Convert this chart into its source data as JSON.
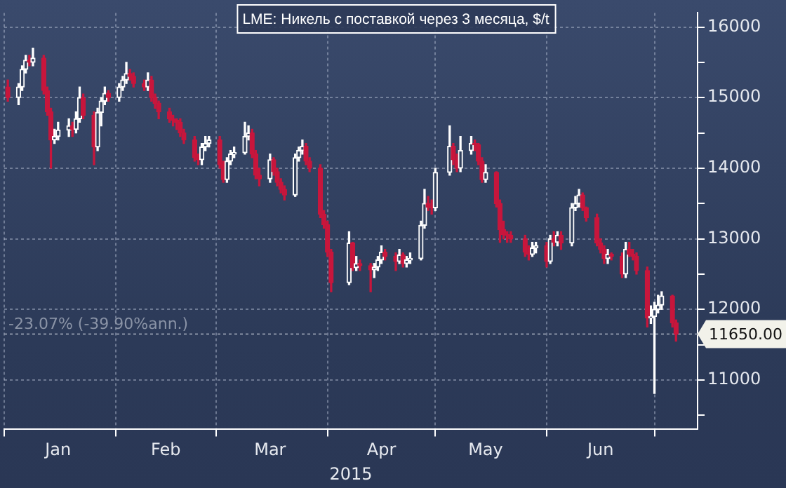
{
  "chart_data": {
    "type": "candlestick",
    "title": "LME: Никель с поставкой через 3 месяца, $/t",
    "xlabel": "2015",
    "x": [
      "2015-01-02",
      "2015-01-05",
      "2015-01-06",
      "2015-01-07",
      "2015-01-08",
      "2015-01-09",
      "2015-01-12",
      "2015-01-13",
      "2015-01-14",
      "2015-01-15",
      "2015-01-16",
      "2015-01-19",
      "2015-01-20",
      "2015-01-21",
      "2015-01-22",
      "2015-01-23",
      "2015-01-26",
      "2015-01-27",
      "2015-01-28",
      "2015-01-29",
      "2015-01-30",
      "2015-02-02",
      "2015-02-03",
      "2015-02-04",
      "2015-02-05",
      "2015-02-06",
      "2015-02-09",
      "2015-02-10",
      "2015-02-11",
      "2015-02-12",
      "2015-02-13",
      "2015-02-16",
      "2015-02-17",
      "2015-02-18",
      "2015-02-19",
      "2015-02-20",
      "2015-02-23",
      "2015-02-24",
      "2015-02-25",
      "2015-02-26",
      "2015-02-27",
      "2015-03-02",
      "2015-03-03",
      "2015-03-04",
      "2015-03-05",
      "2015-03-06",
      "2015-03-09",
      "2015-03-10",
      "2015-03-11",
      "2015-03-12",
      "2015-03-13",
      "2015-03-16",
      "2015-03-17",
      "2015-03-18",
      "2015-03-19",
      "2015-03-20",
      "2015-03-23",
      "2015-03-24",
      "2015-03-25",
      "2015-03-26",
      "2015-03-27",
      "2015-03-30",
      "2015-03-31",
      "2015-04-01",
      "2015-04-02",
      "2015-04-07",
      "2015-04-08",
      "2015-04-09",
      "2015-04-10",
      "2015-04-13",
      "2015-04-14",
      "2015-04-15",
      "2015-04-16",
      "2015-04-17",
      "2015-04-20",
      "2015-04-21",
      "2015-04-22",
      "2015-04-23",
      "2015-04-24",
      "2015-04-27",
      "2015-04-28",
      "2015-04-29",
      "2015-04-30",
      "2015-05-01",
      "2015-05-05",
      "2015-05-06",
      "2015-05-07",
      "2015-05-08",
      "2015-05-11",
      "2015-05-12",
      "2015-05-13",
      "2015-05-14",
      "2015-05-15",
      "2015-05-18",
      "2015-05-19",
      "2015-05-20",
      "2015-05-21",
      "2015-05-22",
      "2015-05-26",
      "2015-05-27",
      "2015-05-28",
      "2015-05-29",
      "2015-06-01",
      "2015-06-02",
      "2015-06-03",
      "2015-06-04",
      "2015-06-05",
      "2015-06-08",
      "2015-06-09",
      "2015-06-10",
      "2015-06-11",
      "2015-06-12",
      "2015-06-15",
      "2015-06-16",
      "2015-06-17",
      "2015-06-18",
      "2015-06-19",
      "2015-06-22",
      "2015-06-23",
      "2015-06-24",
      "2015-06-25",
      "2015-06-26",
      "2015-06-29",
      "2015-06-30",
      "2015-07-01",
      "2015-07-02",
      "2015-07-03",
      "2015-07-06",
      "2015-07-07"
    ],
    "ohlc": [
      [
        15150,
        15250,
        14950,
        15000
      ],
      [
        15000,
        15200,
        14900,
        15150
      ],
      [
        15150,
        15450,
        15100,
        15400
      ],
      [
        15400,
        15600,
        15350,
        15530
      ],
      [
        15530,
        15600,
        15450,
        15500
      ],
      [
        15500,
        15700,
        15450,
        15560
      ],
      [
        15560,
        15600,
        15050,
        15100
      ],
      [
        15100,
        15150,
        14750,
        14800
      ],
      [
        14800,
        14850,
        14000,
        14400
      ],
      [
        14400,
        14550,
        14350,
        14450
      ],
      [
        14450,
        14650,
        14400,
        14540
      ],
      [
        14540,
        14700,
        14450,
        14600
      ],
      [
        14600,
        14650,
        14450,
        14550
      ],
      [
        14550,
        14800,
        14500,
        14700
      ],
      [
        14700,
        15150,
        14650,
        15000
      ],
      [
        15000,
        15050,
        14700,
        14750
      ],
      [
        14750,
        14800,
        14050,
        14300
      ],
      [
        14300,
        14850,
        14250,
        14790
      ],
      [
        14790,
        15000,
        14600,
        14950
      ],
      [
        14950,
        15150,
        14900,
        15060
      ],
      [
        15060,
        15100,
        14950,
        15000
      ],
      [
        15000,
        15200,
        14950,
        15150
      ],
      [
        15150,
        15300,
        15100,
        15250
      ],
      [
        15250,
        15500,
        15200,
        15340
      ],
      [
        15340,
        15400,
        15250,
        15300
      ],
      [
        15300,
        15350,
        15150,
        15200
      ],
      [
        15200,
        15250,
        15100,
        15150
      ],
      [
        15150,
        15350,
        15100,
        15250
      ],
      [
        15250,
        15300,
        14950,
        15000
      ],
      [
        15000,
        15050,
        14850,
        14920
      ],
      [
        14920,
        14950,
        14700,
        14800
      ],
      [
        14800,
        14850,
        14650,
        14700
      ],
      [
        14700,
        14750,
        14600,
        14680
      ],
      [
        14680,
        14700,
        14550,
        14650
      ],
      [
        14650,
        14700,
        14450,
        14500
      ],
      [
        14500,
        14550,
        14350,
        14400
      ],
      [
        14400,
        14450,
        14100,
        14150
      ],
      [
        14150,
        14200,
        14050,
        14120
      ],
      [
        14120,
        14350,
        14050,
        14300
      ],
      [
        14300,
        14450,
        14250,
        14350
      ],
      [
        14350,
        14450,
        14300,
        14400
      ],
      [
        14400,
        14450,
        14000,
        14050
      ],
      [
        14050,
        14100,
        13800,
        13840
      ],
      [
        13840,
        14150,
        13800,
        14100
      ],
      [
        14100,
        14250,
        14050,
        14200
      ],
      [
        14200,
        14300,
        14150,
        14220
      ],
      [
        14220,
        14650,
        14200,
        14450
      ],
      [
        14450,
        14600,
        14400,
        14500
      ],
      [
        14500,
        14550,
        14150,
        14200
      ],
      [
        14200,
        14250,
        13850,
        13900
      ],
      [
        13900,
        14000,
        13750,
        13850
      ],
      [
        13850,
        14200,
        13800,
        14120
      ],
      [
        14120,
        14150,
        13900,
        13950
      ],
      [
        13950,
        14000,
        13750,
        13800
      ],
      [
        13800,
        13850,
        13650,
        13700
      ],
      [
        13700,
        13750,
        13550,
        13620
      ],
      [
        13620,
        14200,
        13600,
        14150
      ],
      [
        14150,
        14300,
        14100,
        14250
      ],
      [
        14250,
        14400,
        14200,
        14310
      ],
      [
        14310,
        14350,
        14050,
        14100
      ],
      [
        14100,
        14150,
        13950,
        14000
      ],
      [
        14000,
        14050,
        13300,
        13350
      ],
      [
        13350,
        13400,
        13150,
        13200
      ],
      [
        13200,
        13250,
        12750,
        12810
      ],
      [
        12810,
        12850,
        12250,
        12380
      ],
      [
        12380,
        13100,
        12350,
        12940
      ],
      [
        12940,
        12950,
        12550,
        12590
      ],
      [
        12590,
        12750,
        12550,
        12650
      ],
      [
        12650,
        12700,
        12550,
        12620
      ],
      [
        12620,
        12650,
        12250,
        12560
      ],
      [
        12560,
        12650,
        12450,
        12600
      ],
      [
        12600,
        12750,
        12550,
        12700
      ],
      [
        12700,
        12900,
        12650,
        12810
      ],
      [
        12810,
        12850,
        12700,
        12750
      ],
      [
        12750,
        12800,
        12550,
        12680
      ],
      [
        12680,
        12850,
        12650,
        12770
      ],
      [
        12770,
        12800,
        12600,
        12650
      ],
      [
        12650,
        12750,
        12600,
        12700
      ],
      [
        12700,
        12800,
        12650,
        12720
      ],
      [
        12720,
        13250,
        12700,
        13190
      ],
      [
        13190,
        13700,
        13150,
        13500
      ],
      [
        13500,
        13600,
        13400,
        13450
      ],
      [
        13450,
        13550,
        13350,
        13440
      ],
      [
        13440,
        14000,
        13400,
        13940
      ],
      [
        13940,
        14600,
        13900,
        14310
      ],
      [
        14310,
        14350,
        14050,
        14120
      ],
      [
        14120,
        14200,
        13950,
        14000
      ],
      [
        14000,
        14450,
        13950,
        14250
      ],
      [
        14250,
        14450,
        14200,
        14350
      ],
      [
        14350,
        14400,
        14250,
        14330
      ],
      [
        14330,
        14350,
        14050,
        14100
      ],
      [
        14100,
        14150,
        13800,
        13840
      ],
      [
        13840,
        14050,
        13800,
        13940
      ],
      [
        13940,
        13950,
        13450,
        13500
      ],
      [
        13500,
        13550,
        12950,
        13130
      ],
      [
        13130,
        13250,
        13000,
        13060
      ],
      [
        13060,
        13100,
        12950,
        13050
      ],
      [
        13050,
        13100,
        12950,
        13000
      ],
      [
        13000,
        13050,
        12750,
        12810
      ],
      [
        12810,
        12900,
        12700,
        12780
      ],
      [
        12780,
        12950,
        12750,
        12870
      ],
      [
        12870,
        12950,
        12800,
        12900
      ],
      [
        12900,
        12950,
        12600,
        12680
      ],
      [
        12680,
        13050,
        12650,
        13000
      ],
      [
        13000,
        13100,
        12900,
        12950
      ],
      [
        12950,
        13100,
        12900,
        13050
      ],
      [
        13050,
        13100,
        12850,
        12940
      ],
      [
        12940,
        13500,
        12900,
        13440
      ],
      [
        13440,
        13600,
        13400,
        13500
      ],
      [
        13500,
        13700,
        13450,
        13620
      ],
      [
        13620,
        13650,
        13400,
        13440
      ],
      [
        13440,
        13450,
        13250,
        13300
      ],
      [
        13300,
        13350,
        12900,
        12940
      ],
      [
        12940,
        13000,
        12800,
        12850
      ],
      [
        12850,
        12900,
        12650,
        12720
      ],
      [
        12720,
        12850,
        12650,
        12780
      ],
      [
        12780,
        12800,
        12700,
        12750
      ],
      [
        12750,
        12800,
        12450,
        12500
      ],
      [
        12500,
        12950,
        12450,
        12850
      ],
      [
        12850,
        12950,
        12750,
        12780
      ],
      [
        12780,
        12850,
        12700,
        12750
      ],
      [
        12750,
        12800,
        12500,
        12550
      ],
      [
        12550,
        12600,
        11750,
        11880
      ],
      [
        11880,
        12050,
        11800,
        11900
      ],
      [
        11900,
        12100,
        10810,
        12000
      ],
      [
        12000,
        12200,
        11950,
        12060
      ],
      [
        12060,
        12250,
        12000,
        12190
      ],
      [
        12190,
        12200,
        11750,
        11810
      ],
      [
        11810,
        11850,
        11550,
        11650
      ]
    ],
    "xlim": [
      "2015-01-01",
      "2015-07-13"
    ],
    "xticks": [
      {
        "value": "2015-01-01",
        "label": null
      },
      {
        "value": "2015-01-16",
        "label": "Jan"
      },
      {
        "value": "2015-02-01",
        "label": null
      },
      {
        "value": "2015-02-15",
        "label": "Feb"
      },
      {
        "value": "2015-03-01",
        "label": null
      },
      {
        "value": "2015-03-16",
        "label": "Mar"
      },
      {
        "value": "2015-04-01",
        "label": null
      },
      {
        "value": "2015-04-16",
        "label": "Apr"
      },
      {
        "value": "2015-05-01",
        "label": null
      },
      {
        "value": "2015-05-15",
        "label": "May"
      },
      {
        "value": "2015-06-01",
        "label": null
      },
      {
        "value": "2015-06-16",
        "label": "Jun"
      },
      {
        "value": "2015-07-01",
        "label": null
      }
    ],
    "ylim": [
      10300,
      16200
    ],
    "yticks": [
      {
        "value": 10500,
        "label": null
      },
      11000,
      {
        "value": 11500,
        "label": null
      },
      12000,
      {
        "value": 12500,
        "label": null
      },
      13000,
      {
        "value": 13500,
        "label": null
      },
      14000,
      {
        "value": 14500,
        "label": null
      },
      15000,
      {
        "value": 15500,
        "label": null
      },
      16000
    ],
    "ref_lines": [
      {
        "axis": "y",
        "value": 11650,
        "label": "-23.07% (-39.90%ann.)",
        "color": "#8a93a6",
        "line_style": "dotted"
      }
    ],
    "annotations": [
      {
        "text": "11650.00",
        "x": "2015-07-07",
        "y": 11650
      }
    ],
    "grid": true,
    "legend": false
  }
}
